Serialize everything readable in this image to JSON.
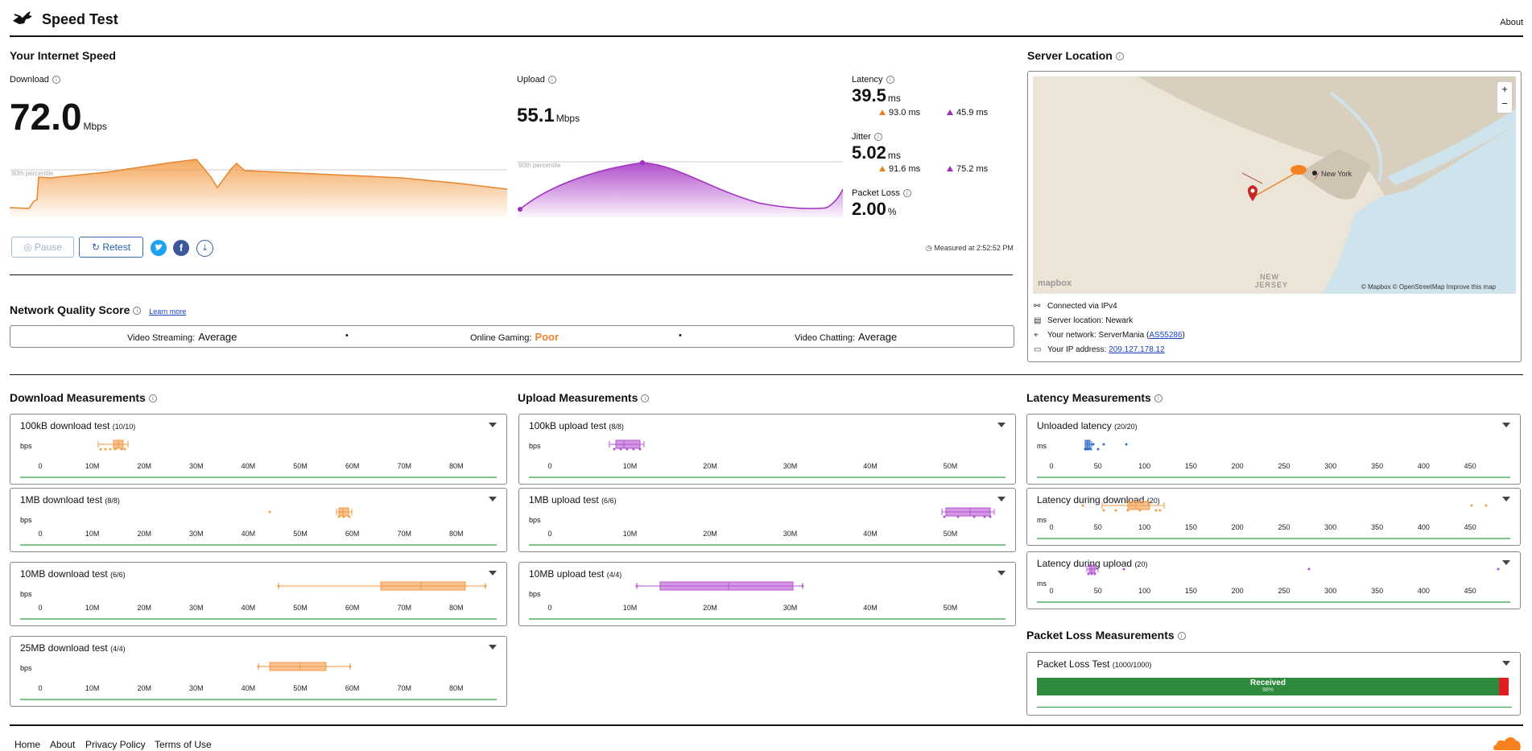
{
  "header": {
    "title": "Speed Test",
    "about": "About"
  },
  "speed": {
    "heading": "Your Internet Speed",
    "download": {
      "label": "Download",
      "value": "72.0",
      "unit": "Mbps"
    },
    "upload": {
      "label": "Upload",
      "value": "55.1",
      "unit": "Mbps"
    },
    "percentile": "90th percentile",
    "latency": {
      "label": "Latency",
      "value": "39.5",
      "unit": "ms",
      "down": "93.0 ms",
      "up": "45.9 ms"
    },
    "jitter": {
      "label": "Jitter",
      "value": "5.02",
      "unit": "ms",
      "down": "91.6 ms",
      "up": "75.2 ms"
    },
    "packet_loss": {
      "label": "Packet Loss",
      "value": "2.00",
      "unit": "%"
    },
    "pause": "Pause",
    "retest": "Retest",
    "measured": "Measured at 2:52:52 PM"
  },
  "quality": {
    "heading": "Network Quality Score",
    "learn_more": "Learn more",
    "streaming_label": "Video Streaming:",
    "streaming": "Average",
    "gaming_label": "Online Gaming:",
    "gaming": "Poor",
    "chatting_label": "Video Chatting:",
    "chatting": "Average",
    "sep": "•"
  },
  "server": {
    "heading": "Server Location",
    "connected": "Connected via IPv4",
    "location": "Server location: Newark",
    "network_label": "Your network: ServerMania (",
    "network_as": "AS55286",
    "network_end": ")",
    "ip_label": "Your IP address: ",
    "ip": "209.127.178.12",
    "map_city": "New York",
    "map_state1": "NEW",
    "map_state2": "JERSEY",
    "map_brand": "mapbox",
    "map_attr": "© Mapbox © OpenStreetMap  Improve this map",
    "zoom_in": "+",
    "zoom_out": "−"
  },
  "sections": {
    "download": "Download Measurements",
    "upload": "Upload Measurements",
    "latency": "Latency Measurements",
    "packet": "Packet Loss Measurements"
  },
  "colors": {
    "download": "#f29a44",
    "upload": "#a12fc2",
    "latency": "#2f6bc6",
    "green": "#2ea043",
    "red": "#e02020"
  },
  "axes": {
    "bw_unit": "bps",
    "ms_unit": "ms",
    "dl_ticks": [
      "0",
      "10M",
      "20M",
      "30M",
      "40M",
      "50M",
      "60M",
      "70M",
      "80M"
    ],
    "ul_ticks": [
      "0",
      "10M",
      "20M",
      "30M",
      "40M",
      "50M"
    ],
    "lat_ticks": [
      "0",
      "50",
      "100",
      "150",
      "200",
      "250",
      "300",
      "350",
      "400",
      "450"
    ]
  },
  "cards": {
    "dl": [
      {
        "title": "100kB download test",
        "count": "(10/10)"
      },
      {
        "title": "1MB download test",
        "count": "(8/8)"
      },
      {
        "title": "10MB download test",
        "count": "(6/6)"
      },
      {
        "title": "25MB download test",
        "count": "(4/4)"
      }
    ],
    "ul": [
      {
        "title": "100kB upload test",
        "count": "(8/8)"
      },
      {
        "title": "1MB upload test",
        "count": "(6/6)"
      },
      {
        "title": "10MB upload test",
        "count": "(4/4)"
      }
    ],
    "lat": [
      {
        "title": "Unloaded latency",
        "count": "(20/20)"
      },
      {
        "title": "Latency during download",
        "count": "(20)"
      },
      {
        "title": "Latency during upload",
        "count": "(20)"
      }
    ],
    "packet": {
      "title": "Packet Loss Test",
      "count": "(1000/1000)",
      "received": "Received",
      "pct": "98%",
      "received_frac": 0.98
    }
  },
  "footer": {
    "home": "Home",
    "about": "About",
    "privacy": "Privacy Policy",
    "terms": "Terms of Use"
  }
}
